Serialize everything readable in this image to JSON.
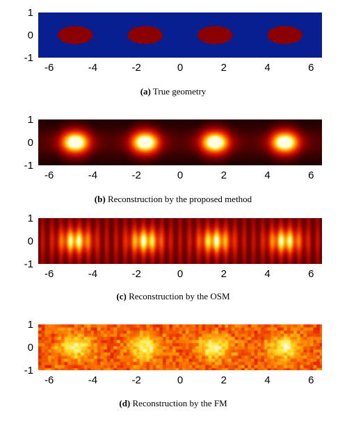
{
  "colors": {
    "background_blue": "#0a1f8f",
    "inclusion_red": "#8b0000",
    "heat_dark": "#1a0000",
    "heat_red": "#b00000",
    "heat_orange": "#ff6a00",
    "heat_yellow": "#ffe840",
    "heat_white": "#fffbe0"
  },
  "chart_data": [
    {
      "type": "heatmap",
      "panel": "a",
      "caption_tag": "(a)",
      "caption_text": " True geometry",
      "colormap": "blue-background with dark-red inclusions",
      "xlim": [
        -6.5,
        6.5
      ],
      "ylim": [
        -1,
        1
      ],
      "x_ticks": [
        -6,
        -4,
        -2,
        0,
        2,
        4,
        6
      ],
      "y_ticks": [
        1,
        0,
        -1
      ],
      "inclusions": [
        {
          "cx": -4.8,
          "cy": 0,
          "rx": 0.8,
          "ry": 0.4
        },
        {
          "cx": -1.6,
          "cy": 0,
          "rx": 0.8,
          "ry": 0.4
        },
        {
          "cx": 1.6,
          "cy": 0,
          "rx": 0.8,
          "ry": 0.4
        },
        {
          "cx": 4.8,
          "cy": 0,
          "rx": 0.8,
          "ry": 0.4
        }
      ]
    },
    {
      "type": "heatmap",
      "panel": "b",
      "caption_tag": "(b)",
      "caption_text": " Reconstruction by the proposed method",
      "colormap": "hot",
      "xlim": [
        -6.5,
        6.5
      ],
      "ylim": [
        -1,
        1
      ],
      "x_ticks": [
        -6,
        -4,
        -2,
        0,
        2,
        4,
        6
      ],
      "y_ticks": [
        1,
        0,
        -1
      ],
      "peaks_x": [
        -4.8,
        -1.6,
        1.6,
        4.8
      ],
      "pattern": "smooth"
    },
    {
      "type": "heatmap",
      "panel": "c",
      "caption_tag": "(c)",
      "caption_text": " Reconstruction by the OSM",
      "colormap": "hot",
      "xlim": [
        -6.5,
        6.5
      ],
      "ylim": [
        -1,
        1
      ],
      "x_ticks": [
        -6,
        -4,
        -2,
        0,
        2,
        4,
        6
      ],
      "y_ticks": [
        1,
        0,
        -1
      ],
      "peaks_x": [
        -4.8,
        -1.6,
        1.6,
        4.8
      ],
      "pattern": "vertical-stripes"
    },
    {
      "type": "heatmap",
      "panel": "d",
      "caption_tag": "(d)",
      "caption_text": " Reconstruction by the FM",
      "colormap": "hot",
      "xlim": [
        -6.5,
        6.5
      ],
      "ylim": [
        -1,
        1
      ],
      "x_ticks": [
        -6,
        -4,
        -2,
        0,
        2,
        4,
        6
      ],
      "y_ticks": [
        1,
        0,
        -1
      ],
      "peaks_x": [
        -4.8,
        -1.6,
        1.6,
        4.8
      ],
      "pattern": "speckled"
    }
  ]
}
